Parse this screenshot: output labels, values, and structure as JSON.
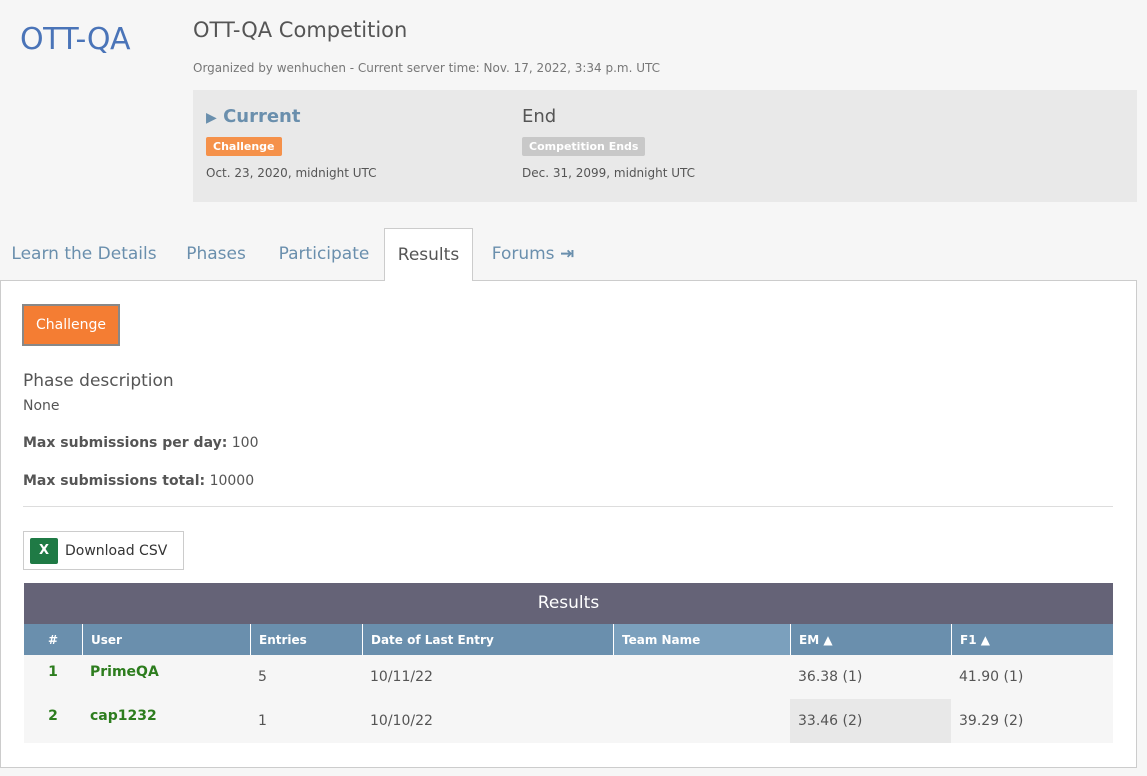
{
  "logo": "OTT-QA",
  "title": "OTT-QA Competition",
  "subtitle": "Organized by wenhuchen - Current server time: Nov. 17, 2022, 3:34 p.m. UTC",
  "phases": [
    {
      "name": "Current",
      "badge": "Challenge",
      "date": "Oct. 23, 2020, midnight UTC",
      "badge_color": "#f5914a"
    },
    {
      "name": "End",
      "badge": "Competition Ends",
      "date": "Dec. 31, 2099, midnight UTC",
      "badge_color": "#c8c8c8"
    }
  ],
  "tabs": [
    "Learn the Details",
    "Phases",
    "Participate",
    "Results",
    "Forums"
  ],
  "active_tab": "Results",
  "phase_button": "Challenge",
  "phase_description_label": "Phase description",
  "phase_description": "None",
  "max_per_day_label": "Max submissions per day:",
  "max_per_day": "100",
  "max_total_label": "Max submissions total:",
  "max_total": "10000",
  "download_csv": "Download CSV",
  "results": {
    "title": "Results",
    "columns": [
      "#",
      "User",
      "Entries",
      "Date of Last Entry",
      "Team Name",
      "EM ▲",
      "F1 ▲"
    ],
    "rows": [
      [
        "1",
        "PrimeQA",
        "5",
        "10/11/22",
        "",
        "36.38 (1)",
        "41.90 (1)"
      ],
      [
        "2",
        "cap1232",
        "1",
        "10/10/22",
        "",
        "33.46 (2)",
        "39.29 (2)"
      ]
    ]
  }
}
